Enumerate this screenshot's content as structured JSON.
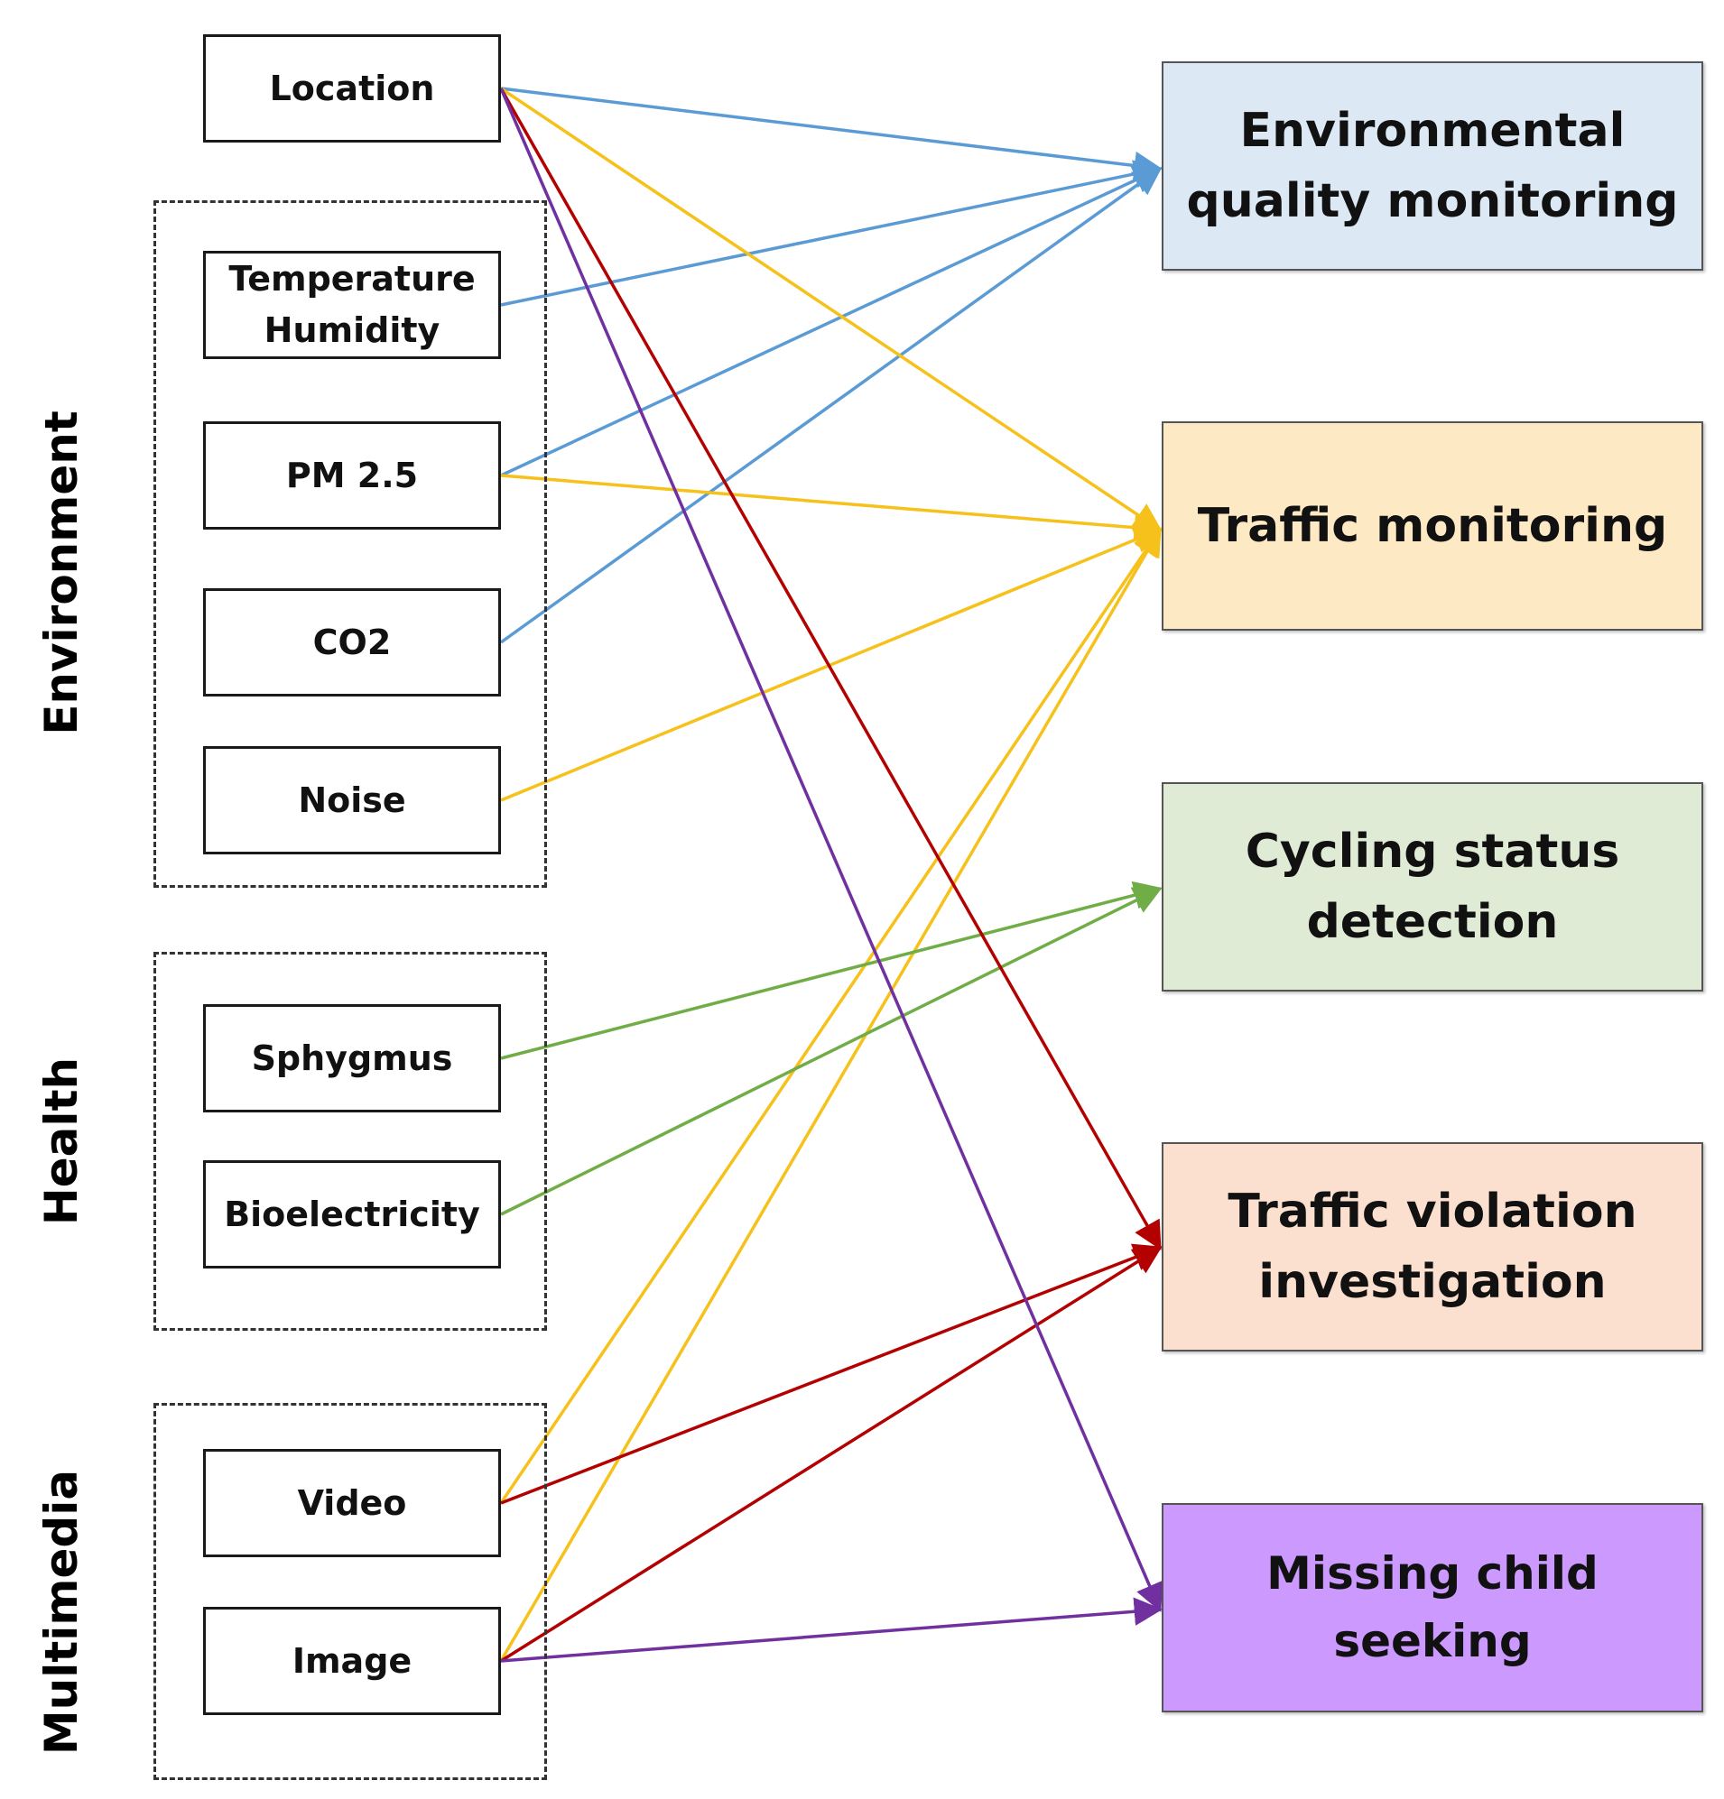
{
  "groups": {
    "environment": "Environment",
    "health": "Health",
    "multimedia": "Multimedia"
  },
  "inputs": {
    "location": "Location",
    "temperature": "Temperature",
    "humidity": "Humidity",
    "pm25": "PM 2.5",
    "co2": "CO2",
    "noise": "Noise",
    "sphygmus": "Sphygmus",
    "bioelectricity": "Bioelectricity",
    "video": "Video",
    "image": "Image"
  },
  "outputs": {
    "environmental_line1": "Environmental",
    "environmental_line2": "quality monitoring",
    "traffic_monitoring": "Traffic monitoring",
    "cycling_line1": "Cycling status",
    "cycling_line2": "detection",
    "violation_line1": "Traffic violation",
    "violation_line2": "investigation",
    "missing_child": "Missing child seeking"
  },
  "colors": {
    "environmental": "#dce9f5",
    "traffic": "#fde9c3",
    "cycling": "#e0ebd5",
    "violation": "#fbe0cf",
    "missing": "#cc99ff",
    "link_blue": "#5b9bd5",
    "link_yellow": "#f5c11a",
    "link_green": "#70ad47",
    "link_red": "#b30000",
    "link_purple": "#7030a0"
  },
  "connections": [
    {
      "from": "location",
      "to": "environmental",
      "color": "link_blue"
    },
    {
      "from": "temperature_humidity",
      "to": "environmental",
      "color": "link_blue"
    },
    {
      "from": "pm25",
      "to": "environmental",
      "color": "link_blue"
    },
    {
      "from": "co2",
      "to": "environmental",
      "color": "link_blue"
    },
    {
      "from": "location",
      "to": "traffic",
      "color": "link_yellow"
    },
    {
      "from": "pm25",
      "to": "traffic",
      "color": "link_yellow"
    },
    {
      "from": "noise",
      "to": "traffic",
      "color": "link_yellow"
    },
    {
      "from": "video",
      "to": "traffic",
      "color": "link_yellow"
    },
    {
      "from": "image",
      "to": "traffic",
      "color": "link_yellow"
    },
    {
      "from": "sphygmus",
      "to": "cycling",
      "color": "link_green"
    },
    {
      "from": "bioelectricity",
      "to": "cycling",
      "color": "link_green"
    },
    {
      "from": "location",
      "to": "violation",
      "color": "link_red"
    },
    {
      "from": "video",
      "to": "violation",
      "color": "link_red"
    },
    {
      "from": "image",
      "to": "violation",
      "color": "link_red"
    },
    {
      "from": "location",
      "to": "missing",
      "color": "link_purple"
    },
    {
      "from": "image",
      "to": "missing",
      "color": "link_purple"
    }
  ]
}
